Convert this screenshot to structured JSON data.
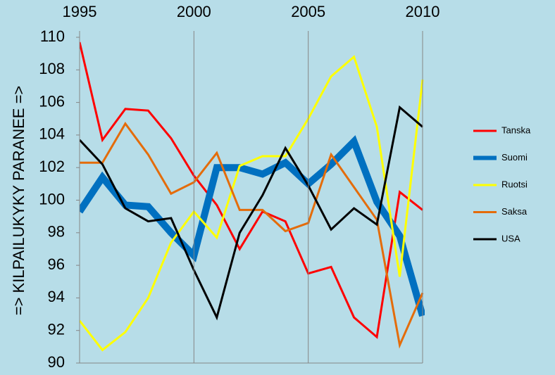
{
  "chart_data": {
    "type": "line",
    "y_label": "=> KILPAILUKYKY PARANEE =>",
    "x": [
      1995,
      1996,
      1997,
      1998,
      1999,
      2000,
      2001,
      2002,
      2003,
      2004,
      2005,
      2006,
      2007,
      2008,
      2009,
      2010
    ],
    "xlim": [
      1995,
      2010
    ],
    "xticks": [
      1995,
      2000,
      2005,
      2010
    ],
    "ylim": [
      90,
      110
    ],
    "yticks": [
      90,
      92,
      94,
      96,
      98,
      100,
      102,
      104,
      106,
      108,
      110
    ],
    "grid": "x",
    "legend": "right",
    "series": [
      {
        "name": "Tanska",
        "color": "#ff0000",
        "line_width": 3,
        "values": [
          109.7,
          103.7,
          105.6,
          105.5,
          103.8,
          101.5,
          99.7,
          97.0,
          99.3,
          98.7,
          95.5,
          95.9,
          92.8,
          91.6,
          100.5,
          99.4
        ]
      },
      {
        "name": "Suomi",
        "color": "#0070c0",
        "line_width": 10,
        "values": [
          99.3,
          101.4,
          99.7,
          99.6,
          98.0,
          96.6,
          102.0,
          102.0,
          101.6,
          102.3,
          101.0,
          102.2,
          103.6,
          99.9,
          97.8,
          92.9
        ]
      },
      {
        "name": "Ruotsi",
        "color": "#ffff00",
        "line_width": 3,
        "values": [
          92.6,
          90.8,
          91.9,
          94.0,
          97.4,
          99.3,
          97.7,
          102.1,
          102.7,
          102.7,
          105.0,
          107.6,
          108.8,
          104.5,
          95.3,
          107.4
        ]
      },
      {
        "name": "Saksa",
        "color": "#e46c0a",
        "line_width": 3,
        "values": [
          102.3,
          102.3,
          104.7,
          102.8,
          100.4,
          101.1,
          102.9,
          99.4,
          99.4,
          98.1,
          98.6,
          102.8,
          100.8,
          98.8,
          91.1,
          94.3
        ]
      },
      {
        "name": "USA",
        "color": "#000000",
        "line_width": 3,
        "values": [
          103.7,
          102.2,
          99.5,
          98.7,
          98.9,
          95.7,
          92.8,
          98.0,
          100.3,
          103.2,
          100.9,
          98.2,
          99.5,
          98.5,
          105.7,
          104.5
        ]
      }
    ]
  }
}
